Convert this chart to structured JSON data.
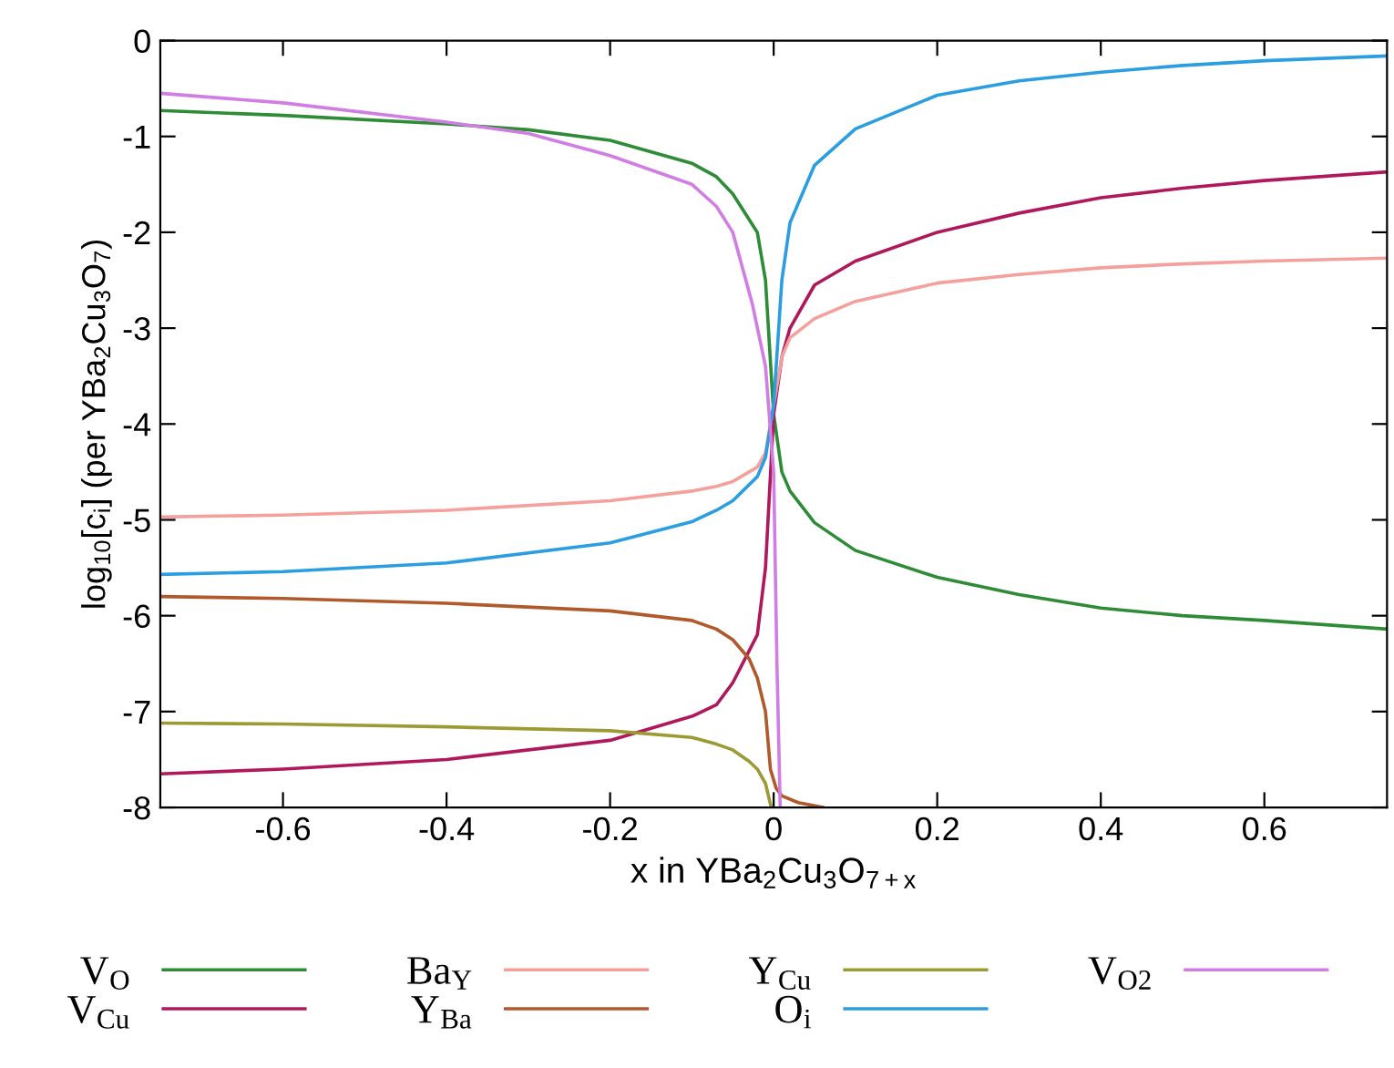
{
  "chart_data": {
    "type": "line",
    "xlabel": "x in YBa$_{2}$Cu$_{3}$O$_{7+x}$",
    "ylabel": "log$_{10}$[c$_{i}$] (per YBa$_{2}$Cu$_{3}$O$_{7}$)",
    "xlim": [
      -0.75,
      0.75
    ],
    "ylim": [
      -8,
      0
    ],
    "xticks": [
      -0.6,
      -0.4,
      -0.2,
      0,
      0.2,
      0.4,
      0.6
    ],
    "yticks": [
      -8,
      -7,
      -6,
      -5,
      -4,
      -3,
      -2,
      -1,
      0
    ],
    "grid": false,
    "legend": "bottom",
    "marker": "none",
    "line_style": "solid",
    "series": [
      {
        "name": "V$_{O}$",
        "color": "#2e8b36",
        "x": [
          -0.75,
          -0.6,
          -0.4,
          -0.3,
          -0.2,
          -0.1,
          -0.07,
          -0.05,
          -0.02,
          -0.01,
          0,
          0.01,
          0.02,
          0.05,
          0.1,
          0.2,
          0.3,
          0.4,
          0.5,
          0.6,
          0.75
        ],
        "values": [
          -0.73,
          -0.78,
          -0.87,
          -0.93,
          -1.04,
          -1.28,
          -1.42,
          -1.6,
          -2.0,
          -2.5,
          -3.9,
          -4.5,
          -4.7,
          -5.03,
          -5.32,
          -5.6,
          -5.78,
          -5.92,
          -6.0,
          -6.05,
          -6.14
        ]
      },
      {
        "name": "V$_{Cu}$",
        "color": "#b0185c",
        "x": [
          -0.75,
          -0.6,
          -0.4,
          -0.2,
          -0.1,
          -0.07,
          -0.05,
          -0.02,
          -0.01,
          0,
          0.01,
          0.02,
          0.05,
          0.1,
          0.2,
          0.3,
          0.4,
          0.5,
          0.6,
          0.75
        ],
        "values": [
          -7.65,
          -7.6,
          -7.5,
          -7.3,
          -7.05,
          -6.93,
          -6.7,
          -6.2,
          -5.5,
          -3.9,
          -3.3,
          -3.0,
          -2.55,
          -2.3,
          -2.0,
          -1.8,
          -1.64,
          -1.54,
          -1.46,
          -1.37
        ]
      },
      {
        "name": "Ba$_{Y}$",
        "color": "#f4a09c",
        "x": [
          -0.75,
          -0.6,
          -0.4,
          -0.2,
          -0.1,
          -0.07,
          -0.05,
          -0.02,
          -0.01,
          0,
          0.01,
          0.02,
          0.05,
          0.1,
          0.2,
          0.3,
          0.4,
          0.5,
          0.6,
          0.75
        ],
        "values": [
          -4.97,
          -4.95,
          -4.9,
          -4.8,
          -4.7,
          -4.65,
          -4.6,
          -4.45,
          -4.3,
          -3.8,
          -3.3,
          -3.1,
          -2.9,
          -2.72,
          -2.53,
          -2.44,
          -2.37,
          -2.33,
          -2.3,
          -2.27
        ]
      },
      {
        "name": "Y$_{Ba}$",
        "color": "#b05a2c",
        "x": [
          -0.75,
          -0.6,
          -0.4,
          -0.2,
          -0.1,
          -0.07,
          -0.05,
          -0.03,
          -0.02,
          -0.01,
          -0.004,
          0.003,
          0.01,
          0.03,
          0.06
        ],
        "values": [
          -5.8,
          -5.82,
          -5.87,
          -5.95,
          -6.05,
          -6.14,
          -6.25,
          -6.45,
          -6.65,
          -7.0,
          -7.6,
          -7.8,
          -7.88,
          -7.95,
          -8.0
        ]
      },
      {
        "name": "Y$_{Cu}$",
        "color": "#9c9a34",
        "x": [
          -0.75,
          -0.6,
          -0.4,
          -0.2,
          -0.1,
          -0.07,
          -0.05,
          -0.03,
          -0.02,
          -0.01,
          -0.003
        ],
        "values": [
          -7.12,
          -7.13,
          -7.16,
          -7.2,
          -7.27,
          -7.34,
          -7.4,
          -7.52,
          -7.6,
          -7.75,
          -8.0
        ]
      },
      {
        "name": "O$_{i}$",
        "color": "#2a9ee0",
        "x": [
          -0.75,
          -0.6,
          -0.4,
          -0.2,
          -0.1,
          -0.07,
          -0.05,
          -0.02,
          -0.01,
          0,
          0.01,
          0.02,
          0.05,
          0.1,
          0.2,
          0.3,
          0.4,
          0.5,
          0.6,
          0.75
        ],
        "values": [
          -5.57,
          -5.54,
          -5.45,
          -5.24,
          -5.02,
          -4.9,
          -4.8,
          -4.55,
          -4.35,
          -3.8,
          -2.5,
          -1.9,
          -1.3,
          -0.92,
          -0.57,
          -0.42,
          -0.33,
          -0.26,
          -0.21,
          -0.16
        ]
      },
      {
        "name": "V$_{O2}$",
        "color": "#d07ee4",
        "x": [
          -0.75,
          -0.6,
          -0.4,
          -0.3,
          -0.2,
          -0.1,
          -0.07,
          -0.05,
          -0.026,
          -0.01,
          0,
          0.004,
          0.008
        ],
        "values": [
          -0.55,
          -0.65,
          -0.85,
          -0.97,
          -1.2,
          -1.5,
          -1.73,
          -2.0,
          -2.75,
          -3.4,
          -4.5,
          -6.5,
          -8.0
        ]
      }
    ]
  }
}
